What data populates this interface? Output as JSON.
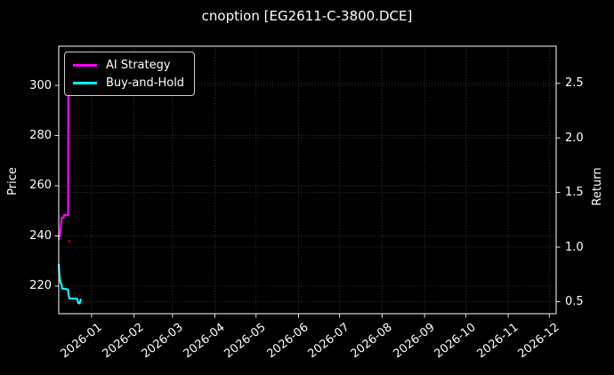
{
  "title": "cnoption [EG2611-C-3800.DCE]",
  "legend": {
    "items": [
      {
        "label": "AI Strategy",
        "color": "#ff00ff"
      },
      {
        "label": "Buy-and-Hold",
        "color": "#00ffff"
      }
    ]
  },
  "chart_data": {
    "type": "line",
    "title": "cnoption [EG2611-C-3800.DCE]",
    "background_color": "#000000",
    "text_color": "#ffffff",
    "grid": {
      "visible": true,
      "style": "dotted",
      "color": "#3d3d3d"
    },
    "x_axis": {
      "unit": "days-from-left-edge",
      "range": [
        0,
        363
      ],
      "ticks": [
        {
          "label": "2026-01",
          "pos": 24
        },
        {
          "label": "2026-02",
          "pos": 55
        },
        {
          "label": "2026-03",
          "pos": 83
        },
        {
          "label": "2026-04",
          "pos": 114
        },
        {
          "label": "2026-05",
          "pos": 144
        },
        {
          "label": "2026-06",
          "pos": 175
        },
        {
          "label": "2026-07",
          "pos": 205
        },
        {
          "label": "2026-08",
          "pos": 236
        },
        {
          "label": "2026-09",
          "pos": 267
        },
        {
          "label": "2026-10",
          "pos": 297
        },
        {
          "label": "2026-11",
          "pos": 328
        },
        {
          "label": "2026-12",
          "pos": 358
        }
      ]
    },
    "price_axis": {
      "label": "Price",
      "side": "left",
      "range": [
        209.0,
        315.6
      ],
      "ticks": [
        220,
        240,
        260,
        280,
        300
      ],
      "decimals": 0
    },
    "return_axis": {
      "label": "Return",
      "side": "right",
      "range": [
        0.39,
        2.84
      ],
      "ticks": [
        0.5,
        1.0,
        1.5,
        2.0,
        2.5
      ],
      "decimals": 1
    },
    "series": [
      {
        "name": "AI Strategy",
        "color": "#ff00ff",
        "width": 2.2,
        "points": [
          [
            0,
            238.4
          ],
          [
            0.25,
            240.3
          ],
          [
            1.0,
            240.0
          ],
          [
            1.9,
            246.0
          ],
          [
            2.2,
            247.3
          ],
          [
            3.6,
            247.3
          ],
          [
            3.9,
            248.3
          ],
          [
            6.9,
            248.3
          ],
          [
            7.0,
            310.0
          ],
          [
            16.2,
            310.0
          ]
        ]
      },
      {
        "name": "Buy-and-Hold",
        "color": "#00ffff",
        "width": 2.2,
        "points": [
          [
            0,
            228.8
          ],
          [
            0.4,
            225.2
          ],
          [
            0.8,
            223.0
          ],
          [
            1.3,
            221.3
          ],
          [
            2.1,
            220.8
          ],
          [
            2.5,
            219.0
          ],
          [
            4.4,
            218.9
          ],
          [
            6.8,
            218.6
          ],
          [
            7.3,
            216.2
          ],
          [
            7.8,
            215.1
          ],
          [
            13.4,
            215.0
          ],
          [
            14.2,
            213.3
          ],
          [
            15.3,
            213.1
          ],
          [
            16.2,
            214.9
          ]
        ]
      }
    ],
    "markers": [
      {
        "pos": 7.8,
        "price": 237.8,
        "color": "#8b0000",
        "shape": "dot"
      }
    ]
  }
}
